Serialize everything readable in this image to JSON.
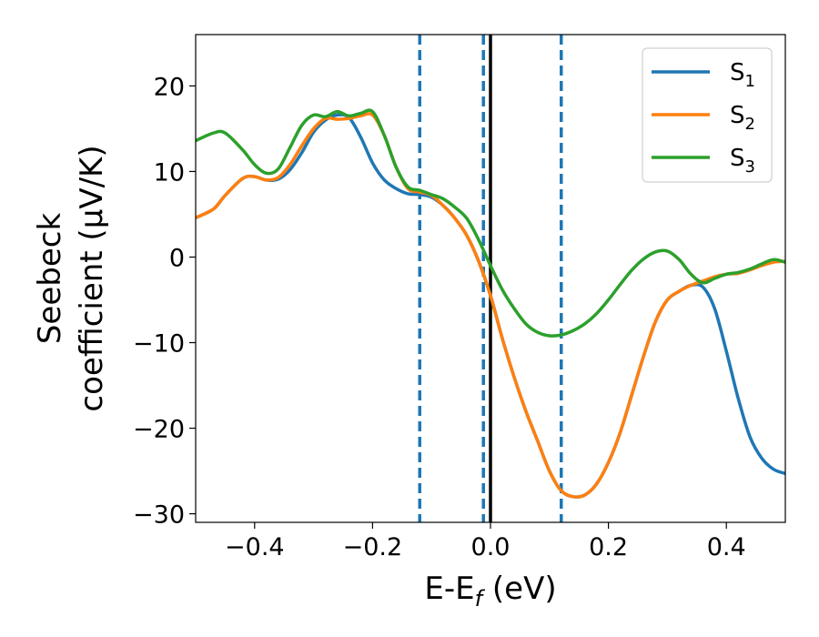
{
  "chart_data": {
    "type": "line",
    "xlabel": "E-E",
    "xlabel_sub": "f",
    "xlabel_unit": " (eV)",
    "ylabel_line1": "Seebeck",
    "ylabel_line2": "coefficient  (μV/K)",
    "xlim": [
      -0.5,
      0.5
    ],
    "ylim": [
      -31,
      26
    ],
    "x_ticks": [
      -0.4,
      -0.2,
      0.0,
      0.2,
      0.4
    ],
    "x_tick_labels": [
      "−0.4",
      "−0.2",
      "0.0",
      "0.2",
      "0.4"
    ],
    "y_ticks": [
      -30,
      -20,
      -10,
      0,
      10,
      20
    ],
    "y_tick_labels": [
      "−30",
      "−20",
      "−10",
      "0",
      "10",
      "20"
    ],
    "legend_position": "top-right",
    "vertical_lines": [
      {
        "x": -0.12,
        "style": "dashed",
        "color": "#1f77b4"
      },
      {
        "x": -0.012,
        "style": "dashed",
        "color": "#1f77b4"
      },
      {
        "x": 0.12,
        "style": "dashed",
        "color": "#1f77b4"
      },
      {
        "x": 0.0,
        "style": "solid",
        "color": "#000000"
      }
    ],
    "series": [
      {
        "name": "S",
        "sub": "1",
        "color": "#1f77b4",
        "x": [
          -0.5,
          -0.47,
          -0.45,
          -0.42,
          -0.4,
          -0.38,
          -0.36,
          -0.34,
          -0.32,
          -0.3,
          -0.28,
          -0.26,
          -0.24,
          -0.22,
          -0.2,
          -0.18,
          -0.16,
          -0.14,
          -0.12,
          -0.1,
          -0.08,
          -0.06,
          -0.04,
          -0.02,
          0.0,
          0.02,
          0.04,
          0.06,
          0.08,
          0.1,
          0.12,
          0.14,
          0.16,
          0.18,
          0.2,
          0.22,
          0.24,
          0.26,
          0.28,
          0.3,
          0.32,
          0.34,
          0.36,
          0.38,
          0.4,
          0.42,
          0.44,
          0.46,
          0.48,
          0.5
        ],
        "y": [
          4.6,
          5.6,
          7.2,
          9.2,
          9.4,
          9.0,
          9.1,
          10.2,
          12.2,
          14.6,
          16.0,
          16.6,
          16.3,
          14.0,
          11.0,
          9.0,
          8.0,
          7.4,
          7.3,
          7.0,
          6.0,
          4.5,
          2.5,
          -0.5,
          -4.5,
          -9.5,
          -14.0,
          -18.0,
          -21.5,
          -25.0,
          -27.3,
          -28.0,
          -27.8,
          -26.5,
          -24.0,
          -20.5,
          -16.0,
          -11.5,
          -7.5,
          -5.0,
          -4.0,
          -3.3,
          -3.5,
          -6.0,
          -11.0,
          -16.5,
          -21.0,
          -23.5,
          -24.8,
          -25.3
        ]
      },
      {
        "name": "S",
        "sub": "2",
        "color": "#ff7f0e",
        "x": [
          -0.5,
          -0.47,
          -0.45,
          -0.42,
          -0.4,
          -0.38,
          -0.36,
          -0.34,
          -0.32,
          -0.3,
          -0.28,
          -0.26,
          -0.24,
          -0.22,
          -0.2,
          -0.18,
          -0.16,
          -0.14,
          -0.12,
          -0.1,
          -0.08,
          -0.06,
          -0.04,
          -0.02,
          0.0,
          0.02,
          0.04,
          0.06,
          0.08,
          0.1,
          0.12,
          0.14,
          0.16,
          0.18,
          0.2,
          0.22,
          0.24,
          0.26,
          0.28,
          0.3,
          0.32,
          0.34,
          0.36,
          0.38,
          0.4,
          0.42,
          0.44,
          0.46,
          0.48,
          0.5
        ],
        "y": [
          4.6,
          5.6,
          7.2,
          9.2,
          9.4,
          9.0,
          9.3,
          10.8,
          13.0,
          15.0,
          16.2,
          16.1,
          16.2,
          16.5,
          16.6,
          14.2,
          10.5,
          8.0,
          7.6,
          7.2,
          6.0,
          4.5,
          2.5,
          -0.5,
          -4.5,
          -9.5,
          -14.0,
          -18.0,
          -21.5,
          -25.0,
          -27.3,
          -28.0,
          -27.8,
          -26.5,
          -24.0,
          -20.5,
          -16.0,
          -11.5,
          -7.5,
          -5.0,
          -4.0,
          -3.3,
          -2.8,
          -2.3,
          -2.0,
          -1.9,
          -1.5,
          -1.0,
          -0.6,
          -0.5
        ]
      },
      {
        "name": "S",
        "sub": "3",
        "color": "#2ca02c",
        "x": [
          -0.5,
          -0.47,
          -0.45,
          -0.42,
          -0.4,
          -0.38,
          -0.36,
          -0.34,
          -0.32,
          -0.3,
          -0.28,
          -0.26,
          -0.24,
          -0.22,
          -0.2,
          -0.18,
          -0.16,
          -0.14,
          -0.12,
          -0.1,
          -0.08,
          -0.06,
          -0.04,
          -0.02,
          0.0,
          0.02,
          0.04,
          0.06,
          0.08,
          0.1,
          0.12,
          0.14,
          0.16,
          0.18,
          0.2,
          0.22,
          0.24,
          0.26,
          0.28,
          0.3,
          0.32,
          0.34,
          0.36,
          0.38,
          0.4,
          0.42,
          0.44,
          0.46,
          0.48,
          0.5
        ],
        "y": [
          13.6,
          14.5,
          14.5,
          12.5,
          10.8,
          9.8,
          10.3,
          12.8,
          15.4,
          16.6,
          16.4,
          17.0,
          16.5,
          16.8,
          17.0,
          14.2,
          10.5,
          8.2,
          7.8,
          7.3,
          6.8,
          5.8,
          4.5,
          2.0,
          -1.0,
          -3.8,
          -6.0,
          -7.8,
          -8.8,
          -9.2,
          -9.1,
          -8.6,
          -7.8,
          -6.6,
          -5.0,
          -3.2,
          -1.5,
          -0.2,
          0.6,
          0.7,
          -0.3,
          -2.0,
          -3.0,
          -2.5,
          -2.0,
          -1.8,
          -1.4,
          -0.8,
          -0.3,
          -0.6
        ]
      }
    ]
  }
}
